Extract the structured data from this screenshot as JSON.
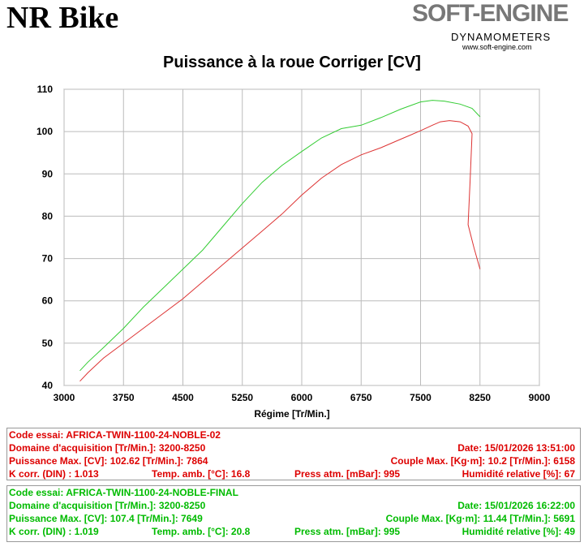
{
  "brand": "NR Bike",
  "logo": {
    "main": "SOFT-ENGINE",
    "sub": "DYNAMOMETERS",
    "url": "www.soft-engine.com"
  },
  "chart_data": {
    "type": "line",
    "title": "Puissance à la roue Corriger [CV]",
    "xlabel": "Régime [Tr/Min.]",
    "ylabel": "",
    "xlim": [
      3000,
      9000
    ],
    "ylim": [
      40,
      110
    ],
    "x_ticks": [
      "3000",
      "3750",
      "4500",
      "5250",
      "6000",
      "6750",
      "7500",
      "8250",
      "9000"
    ],
    "y_ticks": [
      "110",
      "100",
      "90",
      "80",
      "70",
      "60",
      "50",
      "40"
    ],
    "grid": true,
    "series": [
      {
        "color": "#dd3333",
        "points": [
          [
            3200,
            41
          ],
          [
            3300,
            43
          ],
          [
            3500,
            46.5
          ],
          [
            3750,
            50
          ],
          [
            4000,
            53.5
          ],
          [
            4250,
            57
          ],
          [
            4500,
            60.5
          ],
          [
            4750,
            64.5
          ],
          [
            5000,
            68.5
          ],
          [
            5250,
            72.5
          ],
          [
            5500,
            76.5
          ],
          [
            5750,
            80.5
          ],
          [
            6000,
            85
          ],
          [
            6250,
            89
          ],
          [
            6500,
            92.2
          ],
          [
            6750,
            94.5
          ],
          [
            7000,
            96.2
          ],
          [
            7250,
            98.2
          ],
          [
            7500,
            100.2
          ],
          [
            7649,
            101.5
          ],
          [
            7750,
            102.3
          ],
          [
            7864,
            102.6
          ],
          [
            8000,
            102.3
          ],
          [
            8100,
            101.3
          ],
          [
            8150,
            99.5
          ],
          [
            8125,
            88
          ],
          [
            8100,
            78
          ],
          [
            8175,
            72.5
          ],
          [
            8250,
            67.5
          ]
        ]
      },
      {
        "color": "#33cc33",
        "points": [
          [
            3200,
            43.5
          ],
          [
            3300,
            45.5
          ],
          [
            3500,
            49
          ],
          [
            3750,
            53.5
          ],
          [
            4000,
            58.5
          ],
          [
            4250,
            63
          ],
          [
            4500,
            67.5
          ],
          [
            4750,
            72
          ],
          [
            5000,
            77.5
          ],
          [
            5250,
            83
          ],
          [
            5500,
            88
          ],
          [
            5750,
            92
          ],
          [
            6000,
            95.3
          ],
          [
            6250,
            98.5
          ],
          [
            6500,
            100.7
          ],
          [
            6750,
            101.5
          ],
          [
            7000,
            103.3
          ],
          [
            7250,
            105.3
          ],
          [
            7500,
            107
          ],
          [
            7649,
            107.4
          ],
          [
            7800,
            107.2
          ],
          [
            8000,
            106.5
          ],
          [
            8150,
            105.5
          ],
          [
            8250,
            103.5
          ]
        ]
      }
    ]
  },
  "runs": [
    {
      "code": "Code essai: AFRICA-TWIN-1100-24-NOBLE-02",
      "domain": "Domaine d'acquisition [Tr/Min.]: 3200-8250",
      "date": "Date: 15/01/2026   13:51:00",
      "power": "Puissance Max. [CV]: 102.62   [Tr/Min.]: 7864",
      "torque": "Couple Max. [Kg·m]: 10.2   [Tr/Min.]: 6158",
      "kcorr": "K corr. (DIN) : 1.013",
      "temp": "Temp. amb. [°C]: 16.8",
      "press": "Press atm. [mBar]: 995",
      "humid": "Humidité relative [%]: 67"
    },
    {
      "code": "Code essai: AFRICA-TWIN-1100-24-NOBLE-FINAL",
      "domain": "Domaine d'acquisition [Tr/Min.]: 3200-8250",
      "date": "Date: 15/01/2026   16:22:00",
      "power": "Puissance Max. [CV]: 107.4   [Tr/Min.]: 7649",
      "torque": "Couple Max. [Kg·m]: 11.44   [Tr/Min.]: 5691",
      "kcorr": "K corr. (DIN) : 1.019",
      "temp": "Temp. amb. [°C]: 20.8",
      "press": "Press atm. [mBar]: 995",
      "humid": "Humidité relative [%]: 49"
    }
  ]
}
